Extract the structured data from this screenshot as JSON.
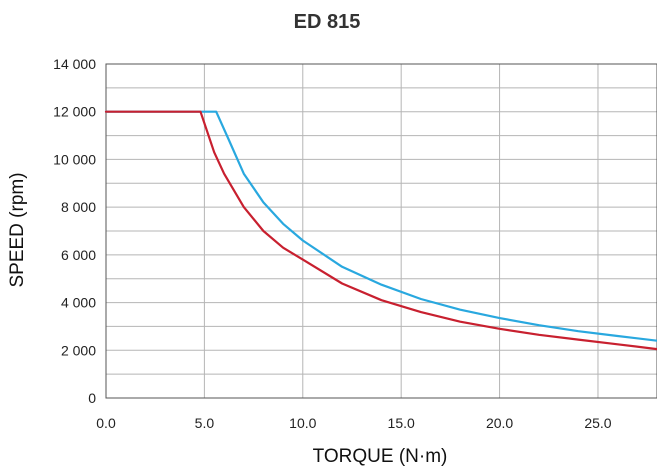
{
  "chart_data": {
    "type": "line",
    "title": "ED 815",
    "xlabel": "TORQUE (N·m)",
    "ylabel": "SPEED (rpm)",
    "xlim": [
      0,
      28
    ],
    "ylim": [
      0,
      14000
    ],
    "x_ticks": [
      "0.0",
      "5.0",
      "10.0",
      "15.0",
      "20.0",
      "25.0"
    ],
    "y_ticks": [
      "0",
      "2 000",
      "4 000",
      "6 000",
      "8 000",
      "10 000",
      "12 000",
      "14 000"
    ],
    "grid": true,
    "series": [
      {
        "color": "#29a8df",
        "x": [
          0,
          5.6,
          6.2,
          7,
          8,
          9,
          10,
          12,
          14,
          16,
          18,
          20,
          22,
          24,
          26,
          28
        ],
        "y": [
          12000,
          12000,
          10900,
          9400,
          8200,
          7300,
          6600,
          5500,
          4750,
          4150,
          3700,
          3350,
          3050,
          2800,
          2600,
          2400
        ]
      },
      {
        "color": "#c8202f",
        "x": [
          0,
          4.8,
          5.5,
          6,
          7,
          8,
          9,
          10,
          12,
          14,
          16,
          18,
          20,
          22,
          24,
          26,
          28
        ],
        "y": [
          12000,
          12000,
          10300,
          9400,
          8000,
          7000,
          6300,
          5800,
          4800,
          4100,
          3600,
          3200,
          2900,
          2650,
          2450,
          2250,
          2050
        ]
      }
    ]
  }
}
